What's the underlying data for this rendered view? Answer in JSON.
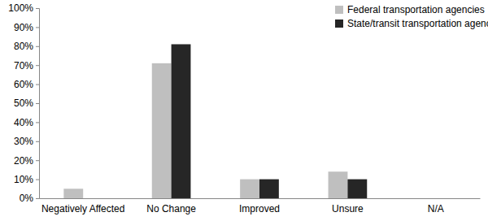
{
  "chart_data": {
    "type": "bar",
    "categories": [
      "Negatively Affected",
      "No Change",
      "Improved",
      "Unsure",
      "N/A"
    ],
    "series": [
      {
        "name": "Federal transportation agencies",
        "color": "#bfbfbf",
        "values": [
          5,
          71,
          10,
          14,
          0
        ]
      },
      {
        "name": "State/transit transportation agencies",
        "color": "#262626",
        "values": [
          0,
          81,
          10,
          10,
          0
        ]
      }
    ],
    "ylim": [
      0,
      100
    ],
    "yticks": [
      {
        "value": 0,
        "label": "0%"
      },
      {
        "value": 10,
        "label": "10%"
      },
      {
        "value": 20,
        "label": "20%"
      },
      {
        "value": 30,
        "label": "30%"
      },
      {
        "value": 40,
        "label": "40%"
      },
      {
        "value": 50,
        "label": "50%"
      },
      {
        "value": 60,
        "label": "60%"
      },
      {
        "value": 70,
        "label": "70%"
      },
      {
        "value": 80,
        "label": "80%"
      },
      {
        "value": 90,
        "label": "90%"
      },
      {
        "value": 100,
        "label": "100%"
      }
    ],
    "grid": false,
    "legend": "top-right"
  }
}
